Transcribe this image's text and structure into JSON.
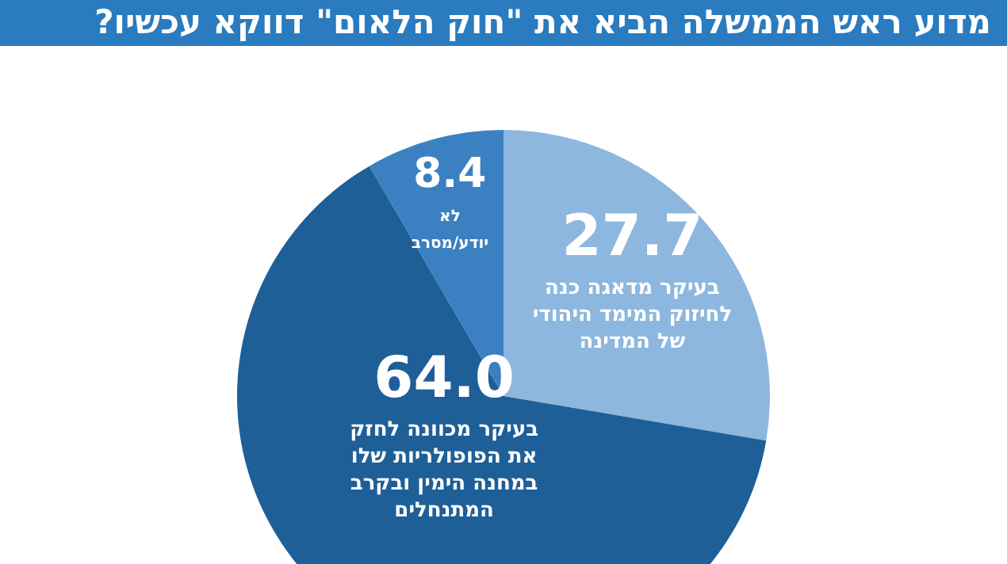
{
  "chart_data": {
    "type": "pie",
    "title": "מדוע ראש הממשלה הביא את \"חוק הלאום\" דווקא עכשיו?",
    "categories": [
      "בעיקר מדאגה כנה לחיזוק המימד היהודי של המדינה",
      "בעיקר מכוונה לחזק את הפופולריות שלו במחנה הימין ובקרב המתנחלים",
      "לא יודע/מסרב"
    ],
    "values": [
      27.7,
      64.0,
      8.4
    ],
    "value_labels": [
      "27.7",
      "64.0",
      "8.4"
    ],
    "colors": [
      "#8db7de",
      "#1e5f98",
      "#3b80c1"
    ],
    "legend": false
  }
}
